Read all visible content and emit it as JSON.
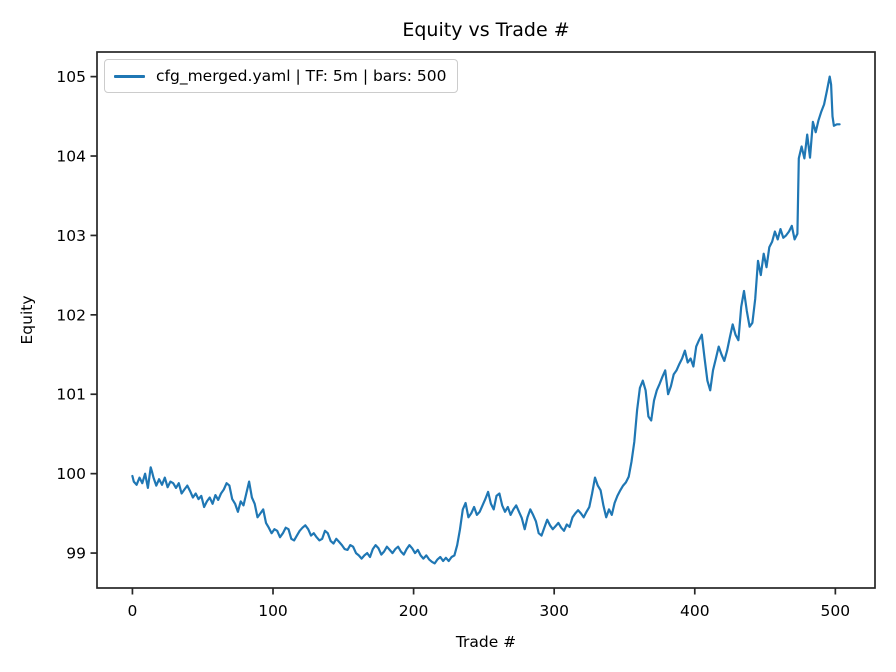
{
  "chart_data": {
    "type": "line",
    "title": "Equity vs Trade #",
    "xlabel": "Trade #",
    "ylabel": "Equity",
    "legend": {
      "position": "upper-left",
      "entries": [
        {
          "label": "cfg_merged.yaml | TF: 5m | bars: 500",
          "color": "#1f77b4"
        }
      ]
    },
    "x_ticks": [
      0,
      100,
      200,
      300,
      400,
      500
    ],
    "y_ticks": [
      99,
      100,
      101,
      102,
      103,
      104,
      105
    ],
    "xlim": [
      -25.2,
      528.2
    ],
    "ylim": [
      98.56,
      105.31
    ],
    "grid": false,
    "line_color": "#1f77b4",
    "axis_color": "#262626",
    "text_color": "#000000",
    "background": "#ffffff",
    "series": [
      {
        "name": "cfg_merged.yaml | TF: 5m | bars: 500",
        "points": [
          [
            0,
            99.97
          ],
          [
            1,
            99.9
          ],
          [
            3,
            99.86
          ],
          [
            5,
            99.95
          ],
          [
            7,
            99.88
          ],
          [
            9,
            100.0
          ],
          [
            11,
            99.82
          ],
          [
            13,
            100.08
          ],
          [
            14,
            100.02
          ],
          [
            15,
            99.95
          ],
          [
            17,
            99.85
          ],
          [
            19,
            99.93
          ],
          [
            21,
            99.86
          ],
          [
            23,
            99.95
          ],
          [
            25,
            99.83
          ],
          [
            27,
            99.9
          ],
          [
            29,
            99.88
          ],
          [
            31,
            99.82
          ],
          [
            33,
            99.88
          ],
          [
            35,
            99.75
          ],
          [
            37,
            99.8
          ],
          [
            39,
            99.85
          ],
          [
            41,
            99.78
          ],
          [
            43,
            99.7
          ],
          [
            45,
            99.75
          ],
          [
            47,
            99.68
          ],
          [
            49,
            99.72
          ],
          [
            51,
            99.58
          ],
          [
            53,
            99.65
          ],
          [
            55,
            99.7
          ],
          [
            57,
            99.62
          ],
          [
            59,
            99.73
          ],
          [
            61,
            99.67
          ],
          [
            63,
            99.75
          ],
          [
            65,
            99.8
          ],
          [
            67,
            99.88
          ],
          [
            69,
            99.85
          ],
          [
            71,
            99.68
          ],
          [
            73,
            99.62
          ],
          [
            75,
            99.52
          ],
          [
            77,
            99.65
          ],
          [
            79,
            99.6
          ],
          [
            81,
            99.75
          ],
          [
            83,
            99.9
          ],
          [
            85,
            99.7
          ],
          [
            87,
            99.62
          ],
          [
            89,
            99.45
          ],
          [
            91,
            99.5
          ],
          [
            93,
            99.55
          ],
          [
            95,
            99.38
          ],
          [
            97,
            99.32
          ],
          [
            99,
            99.25
          ],
          [
            101,
            99.3
          ],
          [
            103,
            99.28
          ],
          [
            105,
            99.2
          ],
          [
            107,
            99.25
          ],
          [
            109,
            99.32
          ],
          [
            111,
            99.3
          ],
          [
            113,
            99.18
          ],
          [
            115,
            99.16
          ],
          [
            117,
            99.22
          ],
          [
            119,
            99.28
          ],
          [
            121,
            99.32
          ],
          [
            123,
            99.35
          ],
          [
            125,
            99.3
          ],
          [
            127,
            99.22
          ],
          [
            129,
            99.25
          ],
          [
            131,
            99.2
          ],
          [
            133,
            99.16
          ],
          [
            135,
            99.18
          ],
          [
            137,
            99.28
          ],
          [
            139,
            99.25
          ],
          [
            141,
            99.15
          ],
          [
            143,
            99.12
          ],
          [
            145,
            99.18
          ],
          [
            147,
            99.14
          ],
          [
            149,
            99.1
          ],
          [
            151,
            99.05
          ],
          [
            153,
            99.04
          ],
          [
            155,
            99.1
          ],
          [
            157,
            99.08
          ],
          [
            159,
            99.0
          ],
          [
            161,
            98.97
          ],
          [
            163,
            98.93
          ],
          [
            165,
            98.97
          ],
          [
            167,
            99.0
          ],
          [
            169,
            98.95
          ],
          [
            171,
            99.05
          ],
          [
            173,
            99.1
          ],
          [
            175,
            99.06
          ],
          [
            177,
            98.98
          ],
          [
            179,
            99.02
          ],
          [
            181,
            99.08
          ],
          [
            183,
            99.04
          ],
          [
            185,
            99.0
          ],
          [
            187,
            99.05
          ],
          [
            189,
            99.08
          ],
          [
            191,
            99.02
          ],
          [
            193,
            98.98
          ],
          [
            195,
            99.05
          ],
          [
            197,
            99.1
          ],
          [
            199,
            99.06
          ],
          [
            201,
            99.0
          ],
          [
            203,
            99.04
          ],
          [
            205,
            98.97
          ],
          [
            207,
            98.93
          ],
          [
            209,
            98.97
          ],
          [
            211,
            98.92
          ],
          [
            213,
            98.89
          ],
          [
            215,
            98.87
          ],
          [
            217,
            98.92
          ],
          [
            219,
            98.95
          ],
          [
            221,
            98.9
          ],
          [
            223,
            98.94
          ],
          [
            225,
            98.9
          ],
          [
            227,
            98.95
          ],
          [
            229,
            98.97
          ],
          [
            231,
            99.1
          ],
          [
            233,
            99.3
          ],
          [
            235,
            99.55
          ],
          [
            237,
            99.63
          ],
          [
            239,
            99.45
          ],
          [
            241,
            99.5
          ],
          [
            243,
            99.58
          ],
          [
            245,
            99.48
          ],
          [
            247,
            99.52
          ],
          [
            249,
            99.6
          ],
          [
            251,
            99.68
          ],
          [
            253,
            99.77
          ],
          [
            255,
            99.62
          ],
          [
            257,
            99.55
          ],
          [
            259,
            99.72
          ],
          [
            261,
            99.75
          ],
          [
            263,
            99.6
          ],
          [
            265,
            99.52
          ],
          [
            267,
            99.58
          ],
          [
            269,
            99.48
          ],
          [
            271,
            99.55
          ],
          [
            273,
            99.6
          ],
          [
            275,
            99.52
          ],
          [
            277,
            99.44
          ],
          [
            279,
            99.3
          ],
          [
            281,
            99.45
          ],
          [
            283,
            99.55
          ],
          [
            285,
            99.48
          ],
          [
            287,
            99.4
          ],
          [
            289,
            99.25
          ],
          [
            291,
            99.22
          ],
          [
            293,
            99.32
          ],
          [
            295,
            99.42
          ],
          [
            297,
            99.35
          ],
          [
            299,
            99.3
          ],
          [
            301,
            99.34
          ],
          [
            303,
            99.38
          ],
          [
            305,
            99.32
          ],
          [
            307,
            99.28
          ],
          [
            309,
            99.36
          ],
          [
            311,
            99.33
          ],
          [
            313,
            99.45
          ],
          [
            315,
            99.5
          ],
          [
            317,
            99.54
          ],
          [
            319,
            99.5
          ],
          [
            321,
            99.45
          ],
          [
            323,
            99.52
          ],
          [
            325,
            99.58
          ],
          [
            327,
            99.75
          ],
          [
            329,
            99.95
          ],
          [
            331,
            99.85
          ],
          [
            333,
            99.79
          ],
          [
            335,
            99.6
          ],
          [
            337,
            99.45
          ],
          [
            339,
            99.55
          ],
          [
            341,
            99.48
          ],
          [
            343,
            99.63
          ],
          [
            345,
            99.72
          ],
          [
            347,
            99.79
          ],
          [
            349,
            99.85
          ],
          [
            351,
            99.89
          ],
          [
            353,
            99.96
          ],
          [
            355,
            100.15
          ],
          [
            357,
            100.4
          ],
          [
            359,
            100.8
          ],
          [
            361,
            101.08
          ],
          [
            363,
            101.17
          ],
          [
            365,
            101.05
          ],
          [
            367,
            100.72
          ],
          [
            369,
            100.67
          ],
          [
            371,
            100.92
          ],
          [
            373,
            101.05
          ],
          [
            375,
            101.13
          ],
          [
            377,
            101.22
          ],
          [
            379,
            101.3
          ],
          [
            381,
            101.0
          ],
          [
            383,
            101.1
          ],
          [
            385,
            101.25
          ],
          [
            387,
            101.3
          ],
          [
            389,
            101.38
          ],
          [
            391,
            101.45
          ],
          [
            393,
            101.55
          ],
          [
            395,
            101.4
          ],
          [
            397,
            101.45
          ],
          [
            399,
            101.35
          ],
          [
            401,
            101.6
          ],
          [
            403,
            101.68
          ],
          [
            405,
            101.75
          ],
          [
            407,
            101.45
          ],
          [
            409,
            101.17
          ],
          [
            411,
            101.05
          ],
          [
            413,
            101.3
          ],
          [
            415,
            101.45
          ],
          [
            417,
            101.6
          ],
          [
            419,
            101.5
          ],
          [
            421,
            101.42
          ],
          [
            423,
            101.55
          ],
          [
            425,
            101.72
          ],
          [
            427,
            101.88
          ],
          [
            429,
            101.75
          ],
          [
            431,
            101.68
          ],
          [
            433,
            102.1
          ],
          [
            435,
            102.3
          ],
          [
            437,
            102.05
          ],
          [
            439,
            101.85
          ],
          [
            441,
            101.9
          ],
          [
            443,
            102.2
          ],
          [
            445,
            102.68
          ],
          [
            447,
            102.5
          ],
          [
            449,
            102.77
          ],
          [
            451,
            102.6
          ],
          [
            453,
            102.85
          ],
          [
            455,
            102.92
          ],
          [
            457,
            103.05
          ],
          [
            459,
            102.95
          ],
          [
            461,
            103.08
          ],
          [
            463,
            102.97
          ],
          [
            465,
            103.0
          ],
          [
            467,
            103.05
          ],
          [
            469,
            103.12
          ],
          [
            471,
            102.95
          ],
          [
            473,
            103.02
          ],
          [
            474,
            103.97
          ],
          [
            476,
            104.12
          ],
          [
            478,
            103.97
          ],
          [
            480,
            104.27
          ],
          [
            482,
            103.98
          ],
          [
            484,
            104.43
          ],
          [
            486,
            104.3
          ],
          [
            488,
            104.45
          ],
          [
            490,
            104.56
          ],
          [
            492,
            104.65
          ],
          [
            494,
            104.82
          ],
          [
            496,
            105.0
          ],
          [
            497,
            104.9
          ],
          [
            498,
            104.5
          ],
          [
            499,
            104.38
          ],
          [
            501,
            104.4
          ],
          [
            503,
            104.4
          ]
        ]
      }
    ]
  }
}
